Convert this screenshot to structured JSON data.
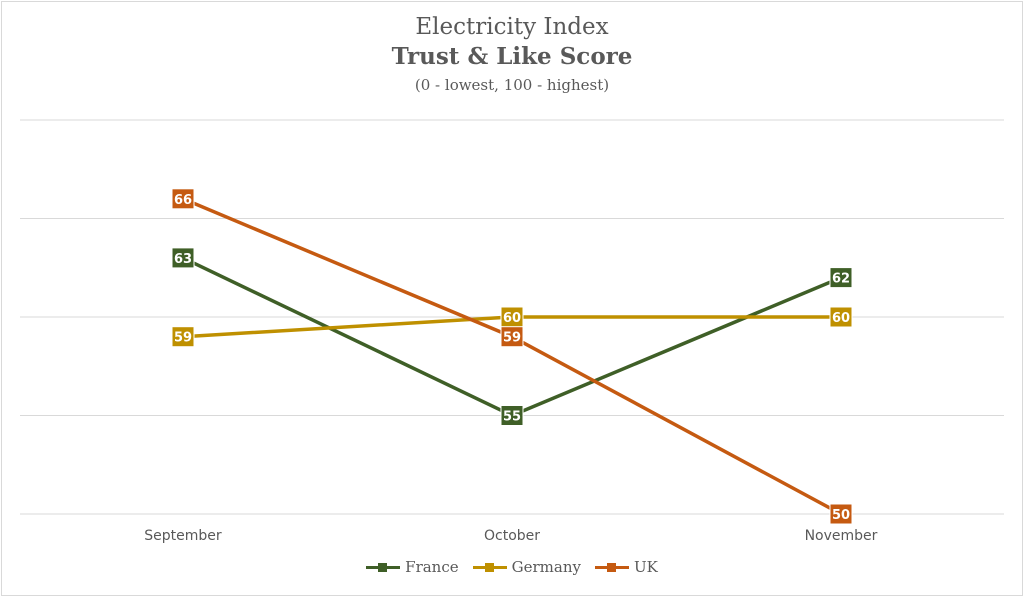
{
  "chart_data": {
    "type": "line",
    "title": "Electricity Index",
    "subtitle_bold": "Trust & Like Score",
    "subtitle": "(0 - lowest, 100 - highest)",
    "categories": [
      "September",
      "October",
      "November"
    ],
    "ylim": [
      50,
      70
    ],
    "grid": true,
    "legend_position": "bottom",
    "series": [
      {
        "name": "France",
        "values": [
          63,
          55,
          62
        ],
        "color": "#3f5f27"
      },
      {
        "name": "Germany",
        "values": [
          59,
          60,
          60
        ],
        "color": "#bf9000"
      },
      {
        "name": "UK",
        "values": [
          66,
          59,
          50
        ],
        "color": "#c55a11"
      }
    ]
  }
}
